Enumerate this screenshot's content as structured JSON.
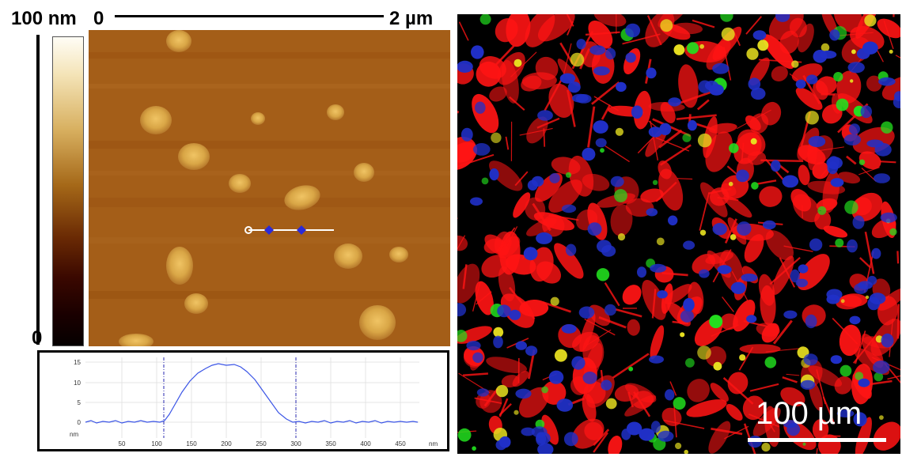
{
  "afm": {
    "colorbar_max_label": "100 nm",
    "colorbar_min_label": "0",
    "scale_start_label": "0",
    "scale_end_label": "2 µm"
  },
  "profile": {
    "y_ticks": [
      "15",
      "10",
      "5",
      "0"
    ],
    "y_unit": "nm",
    "x_ticks": [
      "50",
      "100",
      "150",
      "200",
      "250",
      "300",
      "350",
      "400",
      "450"
    ],
    "x_unit": "nm"
  },
  "fluorescence": {
    "scale_label": "100 µm"
  },
  "colors": {
    "afm_background": "#a45e18",
    "afm_particle": "#e2b454",
    "profile_line": "#3b55e6",
    "cell_red": "#ff1414",
    "nucleus_blue": "#2030c8",
    "spot_green": "#22e01e"
  }
}
